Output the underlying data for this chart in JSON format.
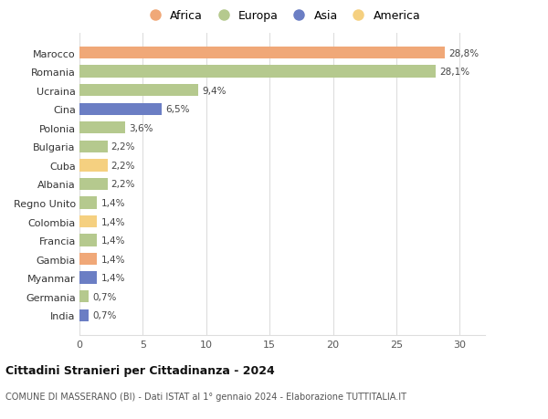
{
  "categories": [
    "India",
    "Germania",
    "Myanmar",
    "Gambia",
    "Francia",
    "Colombia",
    "Regno Unito",
    "Albania",
    "Cuba",
    "Bulgaria",
    "Polonia",
    "Cina",
    "Ucraina",
    "Romania",
    "Marocco"
  ],
  "values": [
    0.7,
    0.7,
    1.4,
    1.4,
    1.4,
    1.4,
    1.4,
    2.2,
    2.2,
    2.2,
    3.6,
    6.5,
    9.4,
    28.1,
    28.8
  ],
  "labels": [
    "0,7%",
    "0,7%",
    "1,4%",
    "1,4%",
    "1,4%",
    "1,4%",
    "1,4%",
    "2,2%",
    "2,2%",
    "2,2%",
    "3,6%",
    "6,5%",
    "9,4%",
    "28,1%",
    "28,8%"
  ],
  "continents": [
    "Asia",
    "Europa",
    "Asia",
    "Africa",
    "Europa",
    "America",
    "Europa",
    "Europa",
    "America",
    "Europa",
    "Europa",
    "Asia",
    "Europa",
    "Europa",
    "Africa"
  ],
  "continent_colors": [
    "#6B7EC4",
    "#B5C98E",
    "#6B7EC4",
    "#F0A878",
    "#B5C98E",
    "#F5D080",
    "#B5C98E",
    "#B5C98E",
    "#F5D080",
    "#B5C98E",
    "#B5C98E",
    "#6B7EC4",
    "#B5C98E",
    "#B5C98E",
    "#F0A878"
  ],
  "legend_items": [
    "Africa",
    "Europa",
    "Asia",
    "America"
  ],
  "legend_colors": [
    "#F0A878",
    "#B5C98E",
    "#6B7EC4",
    "#F5D080"
  ],
  "title": "Cittadini Stranieri per Cittadinanza - 2024",
  "subtitle": "COMUNE DI MASSERANO (BI) - Dati ISTAT al 1° gennaio 2024 - Elaborazione TUTTITALIA.IT",
  "xlim": [
    0,
    32
  ],
  "xticks": [
    0,
    5,
    10,
    15,
    20,
    25,
    30
  ],
  "bg_color": "#ffffff",
  "grid_color": "#dddddd"
}
